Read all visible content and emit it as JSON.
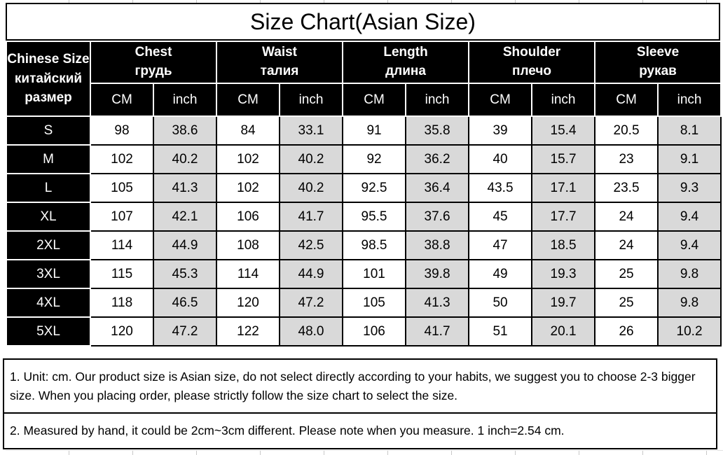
{
  "title": "Size Chart(Asian Size)",
  "colors": {
    "header_bg": "#000000",
    "header_text": "#ffffff",
    "cm_cell_bg": "#ffffff",
    "inch_cell_bg": "#d9d9d9",
    "border": "#000000",
    "text": "#000000"
  },
  "chart_data": {
    "type": "table",
    "title": "Size Chart(Asian Size)",
    "corner_header": "Chinese Size китайский размер",
    "column_groups": [
      {
        "en": "Chest",
        "ru": "грудь"
      },
      {
        "en": "Waist",
        "ru": "талия"
      },
      {
        "en": "Length",
        "ru": "длина"
      },
      {
        "en": "Shoulder",
        "ru": "плечо"
      },
      {
        "en": "Sleeve",
        "ru": "рукав"
      }
    ],
    "unit_labels": {
      "cm": "CM",
      "inch": "inch"
    },
    "rows": [
      {
        "size": "S",
        "values": [
          "98",
          "38.6",
          "84",
          "33.1",
          "91",
          "35.8",
          "39",
          "15.4",
          "20.5",
          "8.1"
        ]
      },
      {
        "size": "M",
        "values": [
          "102",
          "40.2",
          "102",
          "40.2",
          "92",
          "36.2",
          "40",
          "15.7",
          "23",
          "9.1"
        ]
      },
      {
        "size": "L",
        "values": [
          "105",
          "41.3",
          "102",
          "40.2",
          "92.5",
          "36.4",
          "43.5",
          "17.1",
          "23.5",
          "9.3"
        ]
      },
      {
        "size": "XL",
        "values": [
          "107",
          "42.1",
          "106",
          "41.7",
          "95.5",
          "37.6",
          "45",
          "17.7",
          "24",
          "9.4"
        ]
      },
      {
        "size": "2XL",
        "values": [
          "114",
          "44.9",
          "108",
          "42.5",
          "98.5",
          "38.8",
          "47",
          "18.5",
          "24",
          "9.4"
        ]
      },
      {
        "size": "3XL",
        "values": [
          "115",
          "45.3",
          "114",
          "44.9",
          "101",
          "39.8",
          "49",
          "19.3",
          "25",
          "9.8"
        ]
      },
      {
        "size": "4XL",
        "values": [
          "118",
          "46.5",
          "120",
          "47.2",
          "105",
          "41.3",
          "50",
          "19.7",
          "25",
          "9.8"
        ]
      },
      {
        "size": "5XL",
        "values": [
          "120",
          "47.2",
          "122",
          "48.0",
          "106",
          "41.7",
          "51",
          "20.1",
          "26",
          "10.2"
        ]
      }
    ]
  },
  "notes": [
    "1. Unit: cm. Our product size is Asian size, do not select directly according to your habits, we suggest you to choose 2-3 bigger size. When you placing order, please strictly follow the size chart to select the size.",
    "2. Measured by hand, it could be 2cm~3cm different. Please note when you measure. 1 inch=2.54 cm."
  ]
}
